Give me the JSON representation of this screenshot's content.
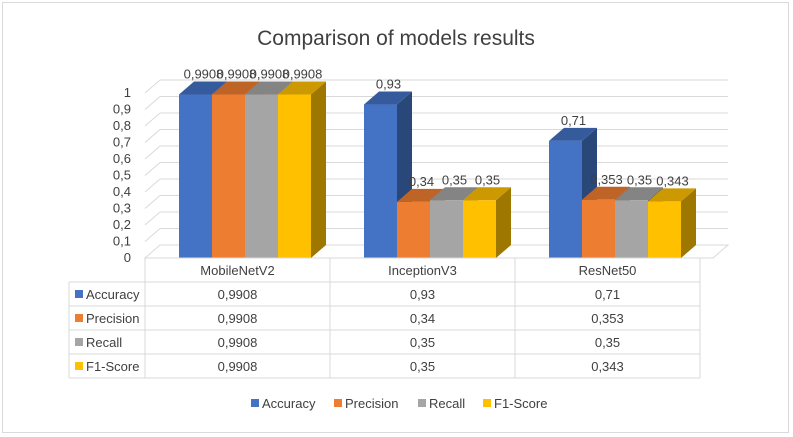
{
  "chart_data": {
    "type": "bar",
    "title": "Comparison of models results",
    "categories": [
      "MobileNetV2",
      "InceptionV3",
      "ResNet50"
    ],
    "series": [
      {
        "name": "Accuracy",
        "values": [
          0.9908,
          0.93,
          0.71
        ],
        "labels": [
          "0,9908",
          "0,93",
          "0,71"
        ],
        "color": "#4472c4"
      },
      {
        "name": "Precision",
        "values": [
          0.9908,
          0.34,
          0.353
        ],
        "labels": [
          "0,9908",
          "0,34",
          "0,353"
        ],
        "color": "#ed7d31"
      },
      {
        "name": "Recall",
        "values": [
          0.9908,
          0.35,
          0.35
        ],
        "labels": [
          "0,9908",
          "0,35",
          "0,35"
        ],
        "color": "#a5a5a5"
      },
      {
        "name": "F1-Score",
        "values": [
          0.9908,
          0.35,
          0.343
        ],
        "labels": [
          "0,9908",
          "0,35",
          "0,343"
        ],
        "color": "#ffc000"
      }
    ],
    "yticks": [
      "0",
      "0,1",
      "0,2",
      "0,3",
      "0,4",
      "0,5",
      "0,6",
      "0,7",
      "0,8",
      "0,9",
      "1"
    ],
    "ylim": [
      0,
      1
    ],
    "grid": true,
    "data_table": true,
    "legend": "bottom"
  }
}
